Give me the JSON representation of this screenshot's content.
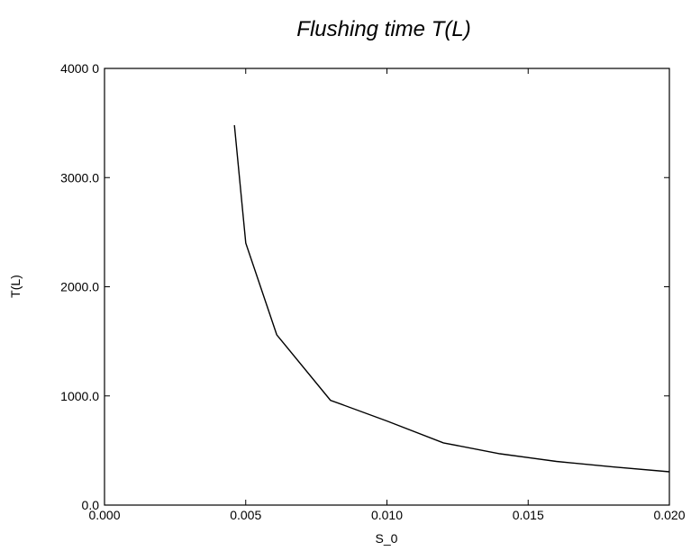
{
  "chart_data": {
    "type": "line",
    "title": "Flushing time T(L)",
    "xlabel": "S_0",
    "ylabel": "T(L)",
    "xlim": [
      0.0,
      0.02
    ],
    "ylim": [
      0.0,
      4000.0
    ],
    "grid": false,
    "x_ticks": [
      0.0,
      0.005,
      0.01,
      0.015,
      0.02
    ],
    "x_tick_labels": [
      "0.000",
      "0.005",
      "0.010",
      "0.015",
      "0.020"
    ],
    "y_ticks": [
      0.0,
      1000.0,
      2000.0,
      3000.0,
      4000.0
    ],
    "y_tick_labels": [
      "0.0",
      "1000.0",
      "2000.0",
      "3000.0",
      "4000 0"
    ],
    "series": [
      {
        "x": [
          0.0046,
          0.005,
          0.0061,
          0.008,
          0.01,
          0.012,
          0.014,
          0.016,
          0.018,
          0.02
        ],
        "y": [
          3480,
          2400,
          1560,
          960,
          770,
          570,
          470,
          400,
          350,
          305
        ],
        "color": "#000000"
      }
    ]
  }
}
